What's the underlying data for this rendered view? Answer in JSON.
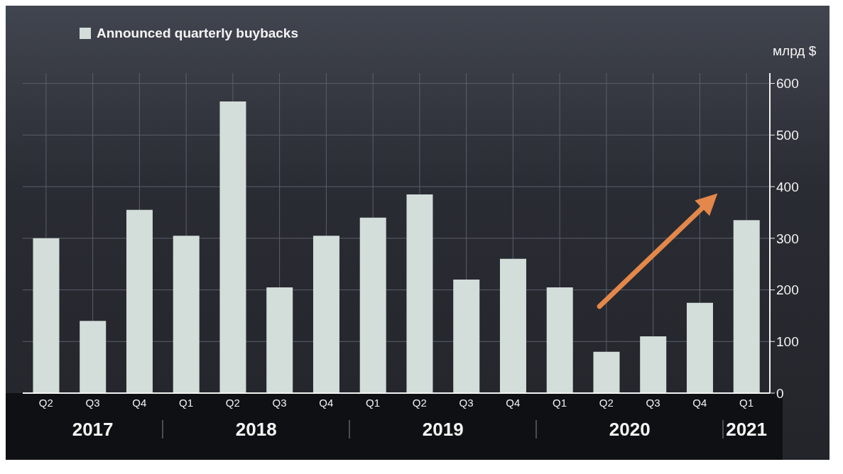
{
  "chart_data": {
    "type": "bar",
    "categories": [
      "Q2",
      "Q3",
      "Q4",
      "Q1",
      "Q2",
      "Q3",
      "Q4",
      "Q1",
      "Q2",
      "Q3",
      "Q4",
      "Q1",
      "Q2",
      "Q3",
      "Q4",
      "Q1"
    ],
    "series": [
      {
        "name": "Announced quarterly buybacks",
        "color": "#d3ddd9",
        "values": [
          300,
          140,
          355,
          305,
          565,
          205,
          305,
          340,
          385,
          220,
          260,
          205,
          80,
          110,
          175,
          335
        ]
      }
    ],
    "ylabel": "млрд $",
    "ylim": [
      0,
      620
    ],
    "yticks": [
      0,
      100,
      200,
      300,
      400,
      500,
      600
    ],
    "grid": true,
    "legend": "top left",
    "annotations": [
      "2017",
      "2018",
      "2019",
      "2020",
      "2021"
    ]
  }
}
